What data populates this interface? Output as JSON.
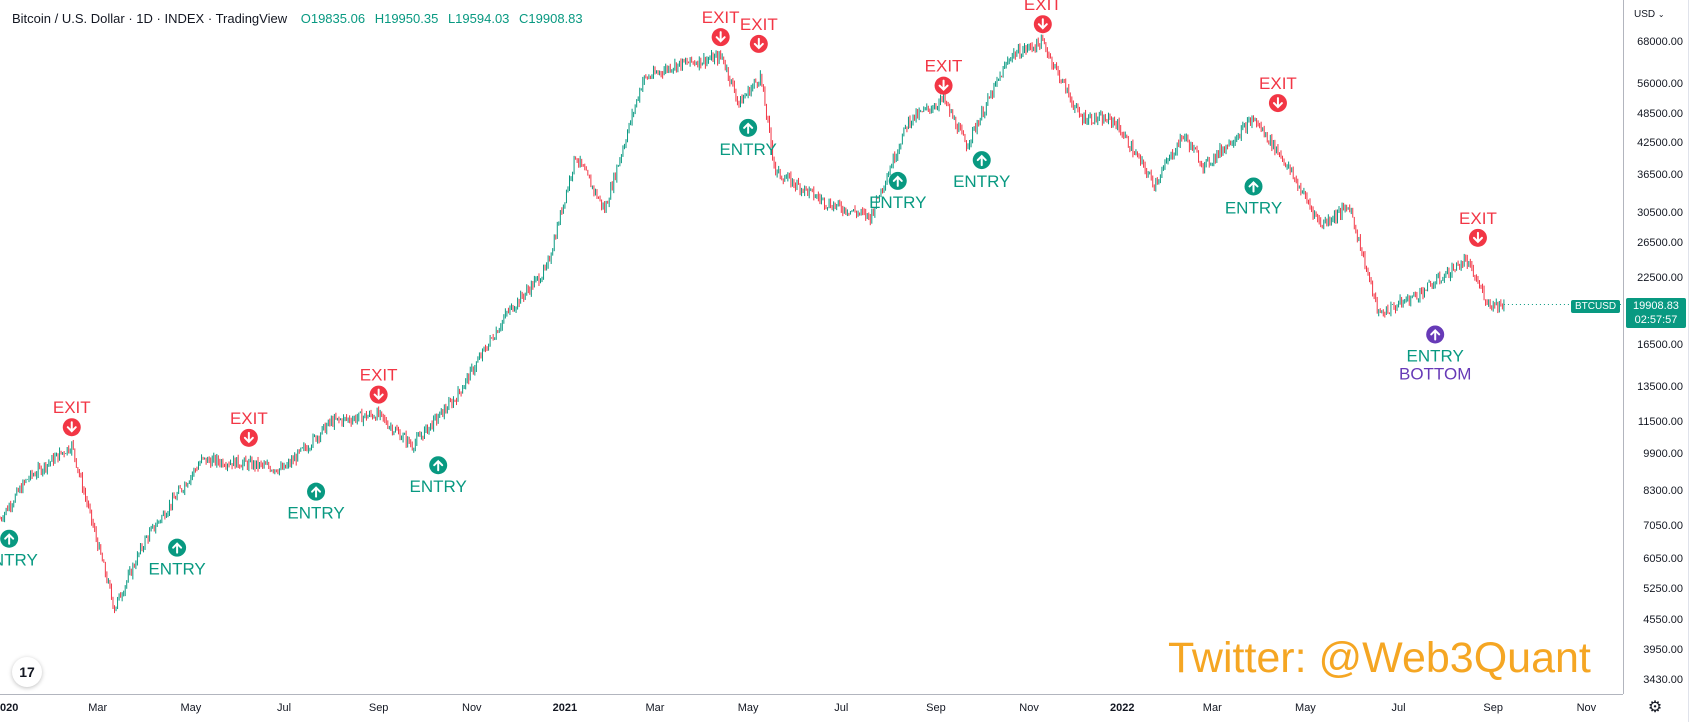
{
  "header": {
    "symbol": "Bitcoin / U.S. Dollar",
    "interval": "1D",
    "exchange": "INDEX",
    "source": "TradingView",
    "open": "O19835.06",
    "high": "H19950.35",
    "low": "L19594.03",
    "close": "C19908.83"
  },
  "price_axis": {
    "currency": "USD",
    "ticks": [
      "68000.00",
      "56000.00",
      "48500.00",
      "42500.00",
      "36500.00",
      "30500.00",
      "26500.00",
      "22500.00",
      "16500.00",
      "13500.00",
      "11500.00",
      "9900.00",
      "8300.00",
      "7050.00",
      "6050.00",
      "5250.00",
      "4550.00",
      "3950.00",
      "3430.00"
    ]
  },
  "time_axis": {
    "ticks": [
      "2020",
      "Mar",
      "May",
      "Jul",
      "Sep",
      "Nov",
      "2021",
      "Mar",
      "May",
      "Jul",
      "Sep",
      "Nov",
      "2022",
      "Mar",
      "May",
      "Jul",
      "Sep",
      "Nov"
    ],
    "year_flags": [
      true,
      false,
      false,
      false,
      false,
      false,
      true,
      false,
      false,
      false,
      false,
      false,
      true,
      false,
      false,
      false,
      false,
      false
    ]
  },
  "last_price": {
    "symbol_tag": "BTCUSD",
    "price": "19908.83",
    "countdown": "02:57:57"
  },
  "watermark": "Twitter: @Web3Quant",
  "logo_text": "17",
  "colors": {
    "up": "#089981",
    "down": "#f23645",
    "bottom_signal": "#673ab7",
    "watermark": "#f5a623"
  },
  "chart_data": {
    "type": "line",
    "scale": "log",
    "x_unit": "date",
    "ylim": [
      3430,
      72000
    ],
    "xlim": [
      "2019-12-28",
      "2022-11-25"
    ],
    "series": [
      {
        "values_x": [
          "2019-12-28",
          "2020-01-15",
          "2020-02-13",
          "2020-03-12",
          "2020-04-01",
          "2020-05-08",
          "2020-06-01",
          "2020-07-01",
          "2020-08-01",
          "2020-08-31",
          "2020-09-23",
          "2020-10-21",
          "2020-11-24",
          "2020-12-20",
          "2021-01-08",
          "2021-01-27",
          "2021-02-21",
          "2021-03-13",
          "2021-04-14",
          "2021-04-25",
          "2021-05-09",
          "2021-05-19",
          "2021-06-22",
          "2021-07-20",
          "2021-08-14",
          "2021-09-06",
          "2021-09-21",
          "2021-10-20",
          "2021-11-10",
          "2021-12-04",
          "2021-12-27",
          "2022-01-22",
          "2022-02-10",
          "2022-02-24",
          "2022-03-28",
          "2022-04-15",
          "2022-05-11",
          "2022-05-30",
          "2022-06-18",
          "2022-07-15",
          "2022-08-14",
          "2022-08-29",
          "2022-09-08"
        ],
        "values_y": [
          7300,
          8800,
          10300,
          4800,
          6600,
          9600,
          9500,
          9200,
          11500,
          11900,
          10300,
          12800,
          19100,
          23500,
          40000,
          31000,
          57000,
          61000,
          63500,
          51000,
          58000,
          37000,
          32000,
          30000,
          47000,
          52000,
          42000,
          64000,
          68000,
          48000,
          47000,
          35000,
          44000,
          38000,
          47500,
          40000,
          29000,
          31500,
          19000,
          21000,
          24500,
          20000,
          19900
        ]
      }
    ],
    "signals": [
      {
        "label": "ENTRY",
        "type": "entry",
        "date": "2020-01-03",
        "price": 7300
      },
      {
        "label": "EXIT",
        "type": "exit",
        "date": "2020-02-13",
        "price": 10300
      },
      {
        "label": "ENTRY",
        "type": "entry",
        "date": "2020-04-22",
        "price": 7000
      },
      {
        "label": "EXIT",
        "type": "exit",
        "date": "2020-06-08",
        "price": 9800
      },
      {
        "label": "ENTRY",
        "type": "entry",
        "date": "2020-07-22",
        "price": 9100
      },
      {
        "label": "EXIT",
        "type": "exit",
        "date": "2020-09-01",
        "price": 12000
      },
      {
        "label": "ENTRY",
        "type": "entry",
        "date": "2020-10-10",
        "price": 10300
      },
      {
        "label": "EXIT",
        "type": "exit",
        "date": "2021-04-13",
        "price": 64000
      },
      {
        "label": "ENTRY",
        "type": "entry",
        "date": "2021-05-01",
        "price": 50000
      },
      {
        "label": "EXIT",
        "type": "exit",
        "date": "2021-05-08",
        "price": 62000
      },
      {
        "label": "ENTRY",
        "type": "entry",
        "date": "2021-08-07",
        "price": 39000
      },
      {
        "label": "EXIT",
        "type": "exit",
        "date": "2021-09-06",
        "price": 51000
      },
      {
        "label": "ENTRY",
        "type": "entry",
        "date": "2021-10-01",
        "price": 43000
      },
      {
        "label": "EXIT",
        "type": "exit",
        "date": "2021-11-10",
        "price": 68000
      },
      {
        "label": "ENTRY",
        "type": "entry",
        "date": "2022-03-28",
        "price": 38000
      },
      {
        "label": "EXIT",
        "type": "exit",
        "date": "2022-04-13",
        "price": 47000
      },
      {
        "label": "ENTRY",
        "type": "entry_bottom",
        "date": "2022-07-25",
        "price": 19000,
        "sublabel": "BOTTOM"
      },
      {
        "label": "EXIT",
        "type": "exit",
        "date": "2022-08-22",
        "price": 25000
      }
    ]
  }
}
